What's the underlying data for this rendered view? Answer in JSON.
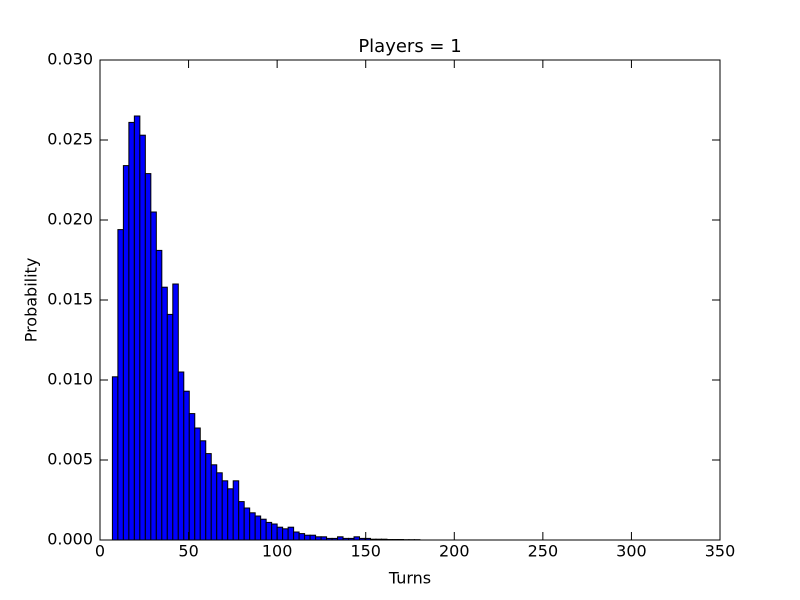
{
  "chart_data": {
    "type": "histogram",
    "title": "Players = 1",
    "x_label": "Turns",
    "y_label": "Probability",
    "bins": [
      7,
      10.1,
      13.2,
      16.3,
      19.4,
      22.5,
      25.6,
      28.7,
      31.8,
      34.9,
      38,
      41.1,
      44.2,
      47.3,
      50.4,
      53.5,
      56.6,
      59.7,
      62.8,
      65.9,
      69,
      72.1,
      75.2,
      78.3,
      81.4,
      84.5,
      87.6,
      90.7,
      93.8,
      96.9,
      100,
      103.1,
      106.2,
      109.3,
      112.4,
      115.5,
      118.6,
      121.7,
      124.8,
      127.9,
      131,
      134.1,
      137.2,
      140.3,
      143.4,
      146.5,
      149.6,
      152.7,
      155.8,
      158.9,
      162,
      165.1,
      168.2,
      171.3,
      174.4,
      177.5,
      180.6,
      183.7,
      186.8,
      189.9,
      193,
      196.1,
      199.2,
      202.3,
      205.4,
      208.5,
      211.6,
      214.7,
      217.8,
      220.9,
      224,
      227.1,
      230.2,
      233.3,
      236.4,
      239.5,
      242.6,
      245.7,
      248.8,
      251.9,
      255,
      258.1,
      261.2,
      264.3,
      267.4,
      270.5,
      273.6,
      276.7,
      279.8,
      282.9,
      286,
      289.1,
      292.2,
      295.3,
      298.4,
      301.5,
      304.6,
      307.7,
      310.8,
      313.9,
      317
    ],
    "values": [
      0.0102,
      0.0194,
      0.0234,
      0.0261,
      0.0265,
      0.0253,
      0.0229,
      0.0205,
      0.0181,
      0.0158,
      0.0141,
      0.016,
      0.0105,
      0.0093,
      0.0079,
      0.007,
      0.0062,
      0.0054,
      0.0047,
      0.0042,
      0.0037,
      0.0032,
      0.0037,
      0.0024,
      0.002,
      0.0017,
      0.0015,
      0.0013,
      0.0011,
      0.001,
      0.0008,
      0.0007,
      0.0008,
      0.0005,
      0.0004,
      0.0003,
      0.0003,
      0.0002,
      0.0002,
      0.0001,
      0.0001,
      0.0002,
      0.0001,
      0.0001,
      0.0002,
      0.0001,
      0.0001,
      5e-05,
      5e-05,
      5e-05,
      3e-05,
      3e-05,
      3e-05,
      2e-05,
      2e-05,
      2e-05,
      0,
      0,
      0,
      0,
      0,
      0,
      0,
      0,
      0,
      0,
      0,
      0,
      0,
      0,
      0,
      0,
      0,
      0,
      0,
      0,
      0,
      0,
      0,
      0,
      0,
      0,
      0,
      0,
      0,
      0,
      0,
      0,
      0,
      0,
      0,
      0,
      0,
      0,
      0,
      0,
      0,
      0,
      0,
      0
    ],
    "color": "#0000ff",
    "edgecolor": "#000000",
    "xlim": [
      0,
      350
    ],
    "xticks": [
      0,
      50,
      100,
      150,
      200,
      250,
      300,
      350
    ],
    "ylim": [
      0,
      0.03
    ],
    "yticks": [
      {
        "value": 0,
        "label": "0.000"
      },
      {
        "value": 0.005,
        "label": "0.005"
      },
      {
        "value": 0.01,
        "label": "0.010"
      },
      {
        "value": 0.015,
        "label": "0.015"
      },
      {
        "value": 0.02,
        "label": "0.020"
      },
      {
        "value": 0.025,
        "label": "0.025"
      },
      {
        "value": 0.03,
        "label": "0.030"
      }
    ]
  }
}
